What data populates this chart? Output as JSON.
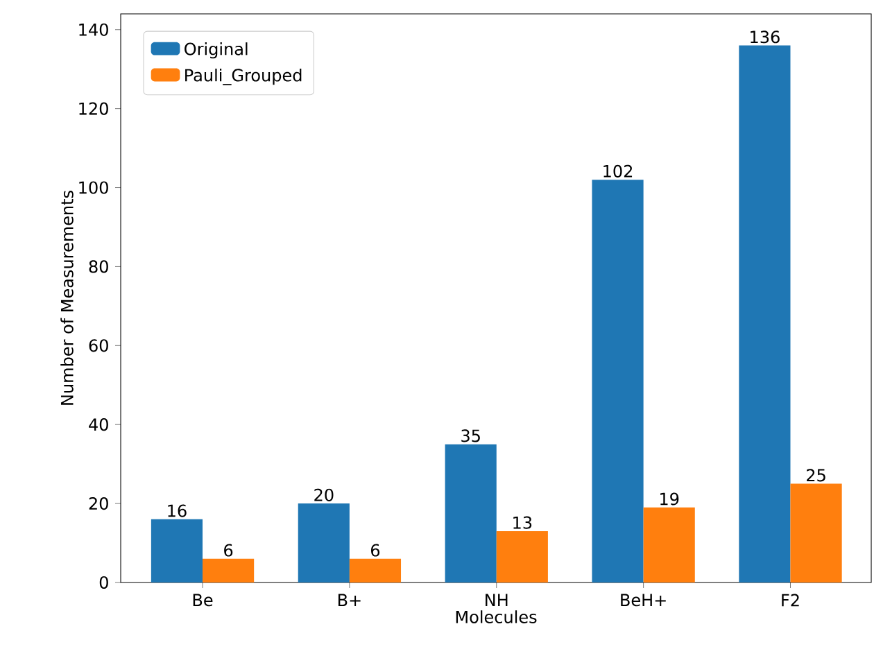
{
  "chart_data": {
    "type": "bar",
    "xlabel": "Molecules",
    "ylabel": "Number of Measurements",
    "categories": [
      "Be",
      "B+",
      "NH",
      "BeH+",
      "F2"
    ],
    "series": [
      {
        "name": "Original",
        "color": "#1f77b4",
        "values": [
          16,
          20,
          35,
          102,
          136
        ]
      },
      {
        "name": "Pauli_Grouped",
        "color": "#ff7f0e",
        "values": [
          6,
          6,
          13,
          19,
          25
        ]
      }
    ],
    "ylim": [
      0,
      144
    ],
    "yticks": [
      0,
      20,
      40,
      60,
      80,
      100,
      120,
      140
    ],
    "legend": "top left",
    "data_labels": true
  }
}
